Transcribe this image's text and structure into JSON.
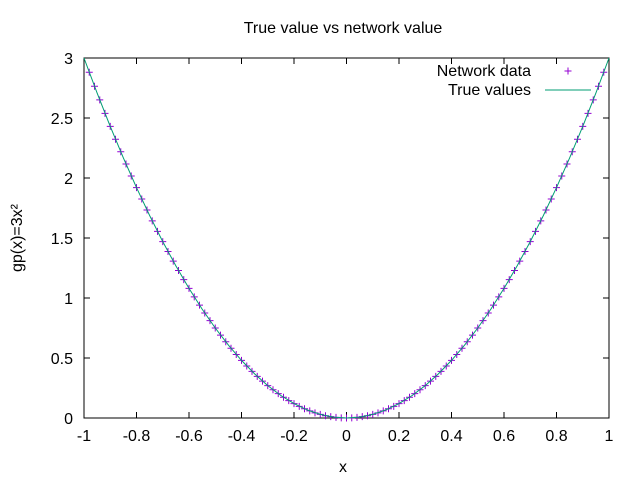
{
  "chart_data": {
    "type": "scatter",
    "title": "True value vs network value",
    "xlabel": "x",
    "ylabel": "gp(x)=3x²",
    "xlim": [
      -1,
      1
    ],
    "ylim": [
      0,
      3
    ],
    "xticks": [
      "-1",
      "-0.8",
      "-0.6",
      "-0.4",
      "-0.2",
      "0",
      "0.2",
      "0.4",
      "0.6",
      "0.8",
      "1"
    ],
    "yticks": [
      "0",
      "0.5",
      "1",
      "1.5",
      "2",
      "2.5",
      "3"
    ],
    "grid": false,
    "legend_position": "top-right",
    "series": [
      {
        "name": "Network data",
        "style": "points",
        "marker": "plus",
        "color": "#9400d3",
        "x": [
          -0.98,
          -0.96,
          -0.94,
          -0.92,
          -0.9,
          -0.88,
          -0.86,
          -0.84,
          -0.82,
          -0.8,
          -0.78,
          -0.76,
          -0.74,
          -0.72,
          -0.7,
          -0.68,
          -0.66,
          -0.64,
          -0.62,
          -0.6,
          -0.58,
          -0.56,
          -0.54,
          -0.52,
          -0.5,
          -0.48,
          -0.46,
          -0.44,
          -0.42,
          -0.4,
          -0.38,
          -0.36,
          -0.34,
          -0.32,
          -0.3,
          -0.28,
          -0.26,
          -0.24,
          -0.22,
          -0.2,
          -0.18,
          -0.16,
          -0.14,
          -0.12,
          -0.1,
          -0.08,
          -0.06,
          -0.04,
          -0.02,
          0,
          0.02,
          0.04,
          0.06,
          0.08,
          0.1,
          0.12,
          0.14,
          0.16,
          0.18,
          0.2,
          0.22,
          0.24,
          0.26,
          0.28,
          0.3,
          0.32,
          0.34,
          0.36,
          0.38,
          0.4,
          0.42,
          0.44,
          0.46,
          0.48,
          0.5,
          0.52,
          0.54,
          0.56,
          0.58,
          0.6,
          0.62,
          0.64,
          0.66,
          0.68,
          0.7,
          0.72,
          0.74,
          0.76,
          0.78,
          0.8,
          0.82,
          0.84,
          0.86,
          0.88,
          0.9,
          0.92,
          0.94,
          0.96,
          0.98
        ],
        "y": [
          2.881,
          2.765,
          2.651,
          2.539,
          2.43,
          2.323,
          2.219,
          2.117,
          2.017,
          1.92,
          1.825,
          1.733,
          1.643,
          1.555,
          1.47,
          1.387,
          1.307,
          1.229,
          1.153,
          1.08,
          1.009,
          0.941,
          0.875,
          0.811,
          0.75,
          0.691,
          0.635,
          0.581,
          0.529,
          0.48,
          0.433,
          0.389,
          0.347,
          0.307,
          0.27,
          0.235,
          0.203,
          0.173,
          0.145,
          0.12,
          0.097,
          0.077,
          0.059,
          0.043,
          0.03,
          0.019,
          0.011,
          0.005,
          0.001,
          0,
          0.001,
          0.005,
          0.011,
          0.019,
          0.03,
          0.043,
          0.059,
          0.077,
          0.097,
          0.12,
          0.145,
          0.173,
          0.203,
          0.235,
          0.27,
          0.307,
          0.347,
          0.389,
          0.433,
          0.48,
          0.529,
          0.581,
          0.635,
          0.691,
          0.75,
          0.811,
          0.875,
          0.941,
          1.009,
          1.08,
          1.153,
          1.229,
          1.307,
          1.387,
          1.47,
          1.555,
          1.643,
          1.733,
          1.825,
          1.92,
          2.017,
          2.117,
          2.219,
          2.323,
          2.43,
          2.539,
          2.651,
          2.765,
          2.881
        ]
      },
      {
        "name": "True values",
        "style": "line",
        "color": "#009e73",
        "x": [
          -1,
          -0.95,
          -0.9,
          -0.85,
          -0.8,
          -0.75,
          -0.7,
          -0.65,
          -0.6,
          -0.55,
          -0.5,
          -0.45,
          -0.4,
          -0.35,
          -0.3,
          -0.25,
          -0.2,
          -0.15,
          -0.1,
          -0.05,
          0,
          0.05,
          0.1,
          0.15,
          0.2,
          0.25,
          0.3,
          0.35,
          0.4,
          0.45,
          0.5,
          0.55,
          0.6,
          0.65,
          0.7,
          0.75,
          0.8,
          0.85,
          0.9,
          0.95,
          1
        ],
        "y": [
          3,
          2.7075,
          2.43,
          2.1675,
          1.92,
          1.6875,
          1.47,
          1.2675,
          1.08,
          0.9075,
          0.75,
          0.6075,
          0.48,
          0.3675,
          0.27,
          0.1875,
          0.12,
          0.0675,
          0.03,
          0.0075,
          0,
          0.0075,
          0.03,
          0.0675,
          0.12,
          0.1875,
          0.27,
          0.3675,
          0.48,
          0.6075,
          0.75,
          0.9075,
          1.08,
          1.2675,
          1.47,
          1.6875,
          1.92,
          2.1675,
          2.43,
          2.7075,
          3
        ]
      }
    ]
  }
}
